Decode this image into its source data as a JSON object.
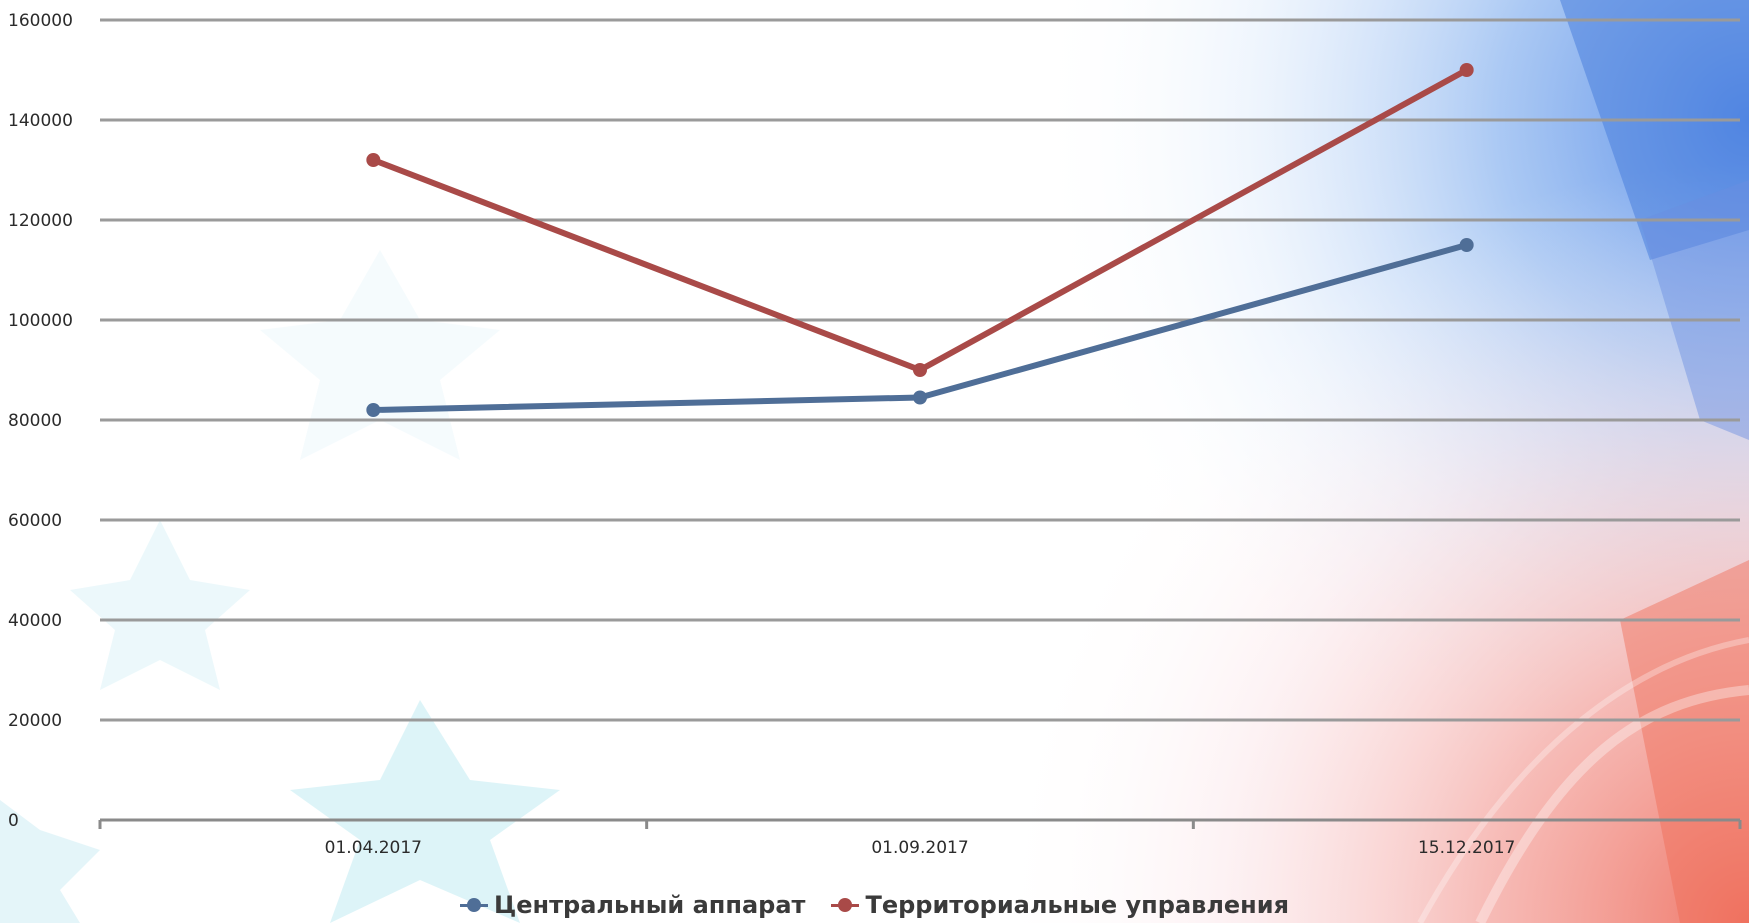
{
  "chart_data": {
    "type": "line",
    "categories": [
      "01.04.2017",
      "01.09.2017",
      "15.12.2017"
    ],
    "series": [
      {
        "name": "Центральный аппарат",
        "values": [
          82000,
          84500,
          115000
        ],
        "color": "#4f6e97"
      },
      {
        "name": "Территориальные управления",
        "values": [
          132000,
          90000,
          150000
        ],
        "color": "#a94a48"
      }
    ],
    "yticks": [
      "0",
      "20000",
      "40000",
      "60000",
      "80000",
      "100000",
      "120000",
      "140000",
      "160000"
    ],
    "ylim": [
      0,
      160000
    ],
    "grid": true,
    "legend_position": "bottom",
    "gridline_color": "#9a9a9a",
    "axis_color": "#8a8a8a"
  }
}
